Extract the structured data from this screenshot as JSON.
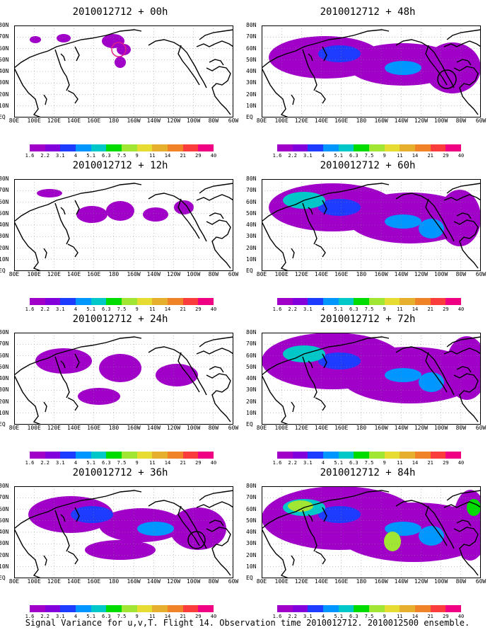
{
  "panels": [
    {
      "id": "p00",
      "title": "2010012712 + 00h",
      "level": 0,
      "circle_color": "#dd2288"
    },
    {
      "id": "p48",
      "title": "2010012712 + 48h",
      "level": 4,
      "circle_color": "#000000"
    },
    {
      "id": "p12",
      "title": "2010012712 + 12h",
      "level": 1,
      "circle_color": ""
    },
    {
      "id": "p60",
      "title": "2010012712 + 60h",
      "level": 5,
      "circle_color": ""
    },
    {
      "id": "p24",
      "title": "2010012712 + 24h",
      "level": 2,
      "circle_color": ""
    },
    {
      "id": "p72",
      "title": "2010012712 + 72h",
      "level": 6,
      "circle_color": ""
    },
    {
      "id": "p36",
      "title": "2010012712 + 36h",
      "level": 3,
      "circle_color": "#000000"
    },
    {
      "id": "p84",
      "title": "2010012712 + 84h",
      "level": 7,
      "circle_color": ""
    }
  ],
  "lat_labels": [
    "80N",
    "70N",
    "60N",
    "50N",
    "40N",
    "30N",
    "20N",
    "10N",
    "EQ"
  ],
  "lon_labels": [
    "80E",
    "100E",
    "120E",
    "140E",
    "160E",
    "180",
    "160W",
    "140W",
    "120W",
    "100W",
    "80W",
    "60W"
  ],
  "colorbar": {
    "labels": [
      "1.6",
      "2.2",
      "3.1",
      "4",
      "5.1",
      "6.3",
      "7.5",
      "9",
      "11",
      "14",
      "21",
      "29",
      "40"
    ],
    "colors": [
      "#a000c8",
      "#8200dc",
      "#1e3cff",
      "#0096ff",
      "#00c8c8",
      "#00dc00",
      "#a0e632",
      "#e6dc32",
      "#e6af2d",
      "#f08228",
      "#fa3c3c",
      "#f00082"
    ]
  },
  "caption": "Signal Variance for u,v,T. Flight 14. Observation time 2010012712. 2010012500 ensemble."
}
